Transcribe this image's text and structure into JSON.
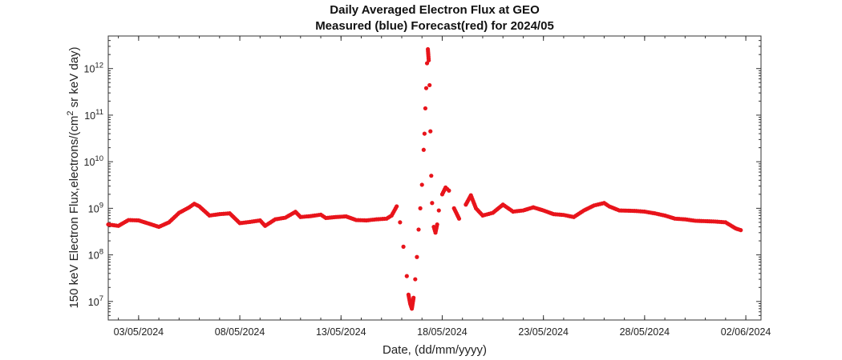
{
  "chart_data": {
    "type": "scatter",
    "title": "Daily Averaged Electron Flux at GEO",
    "subtitle": "Measured (blue) Forecast(red) for 2024/05",
    "xlabel": "Date, (dd/mm/yyyy)",
    "ylabel": "150 keV Electron Flux,electrons/(cm² sr keV day)",
    "ylabel_parts": {
      "before": "150 keV Electron Flux,electrons/(cm",
      "sup": "2",
      "after": " sr keV day)"
    },
    "x_scale": "date",
    "y_scale": "log",
    "xlim": [
      "2024-05-01 12:00",
      "2024-06-02 18:00"
    ],
    "ylim": [
      4000000.0,
      5000000000000.0
    ],
    "x_ticks": [
      "03/05/2024",
      "08/05/2024",
      "13/05/2024",
      "18/05/2024",
      "23/05/2024",
      "28/05/2024",
      "02/06/2024"
    ],
    "y_ticks": [
      {
        "base": "10",
        "exp": "7"
      },
      {
        "base": "10",
        "exp": "8"
      },
      {
        "base": "10",
        "exp": "9"
      },
      {
        "base": "10",
        "exp": "10"
      },
      {
        "base": "10",
        "exp": "11"
      },
      {
        "base": "10",
        "exp": "12"
      }
    ],
    "grid": false,
    "legend": "none",
    "series": [
      {
        "color": "#e8141b",
        "points": [
          [
            "2024-05-01 12:00",
            450000000.0
          ],
          [
            "2024-05-02 00:00",
            420000000.0
          ],
          [
            "2024-05-02 12:00",
            560000000.0
          ],
          [
            "2024-05-03 00:00",
            550000000.0
          ],
          [
            "2024-05-03 12:00",
            470000000.0
          ],
          [
            "2024-05-04 00:00",
            400000000.0
          ],
          [
            "2024-05-04 12:00",
            500000000.0
          ],
          [
            "2024-05-05 00:00",
            800000000.0
          ],
          [
            "2024-05-05 12:00",
            1050000000.0
          ],
          [
            "2024-05-05 18:00",
            1250000000.0
          ],
          [
            "2024-05-06 00:00",
            1100000000.0
          ],
          [
            "2024-05-06 12:00",
            700000000.0
          ],
          [
            "2024-05-07 00:00",
            750000000.0
          ],
          [
            "2024-05-07 12:00",
            780000000.0
          ],
          [
            "2024-05-08 00:00",
            480000000.0
          ],
          [
            "2024-05-08 12:00",
            510000000.0
          ],
          [
            "2024-05-09 00:00",
            550000000.0
          ],
          [
            "2024-05-09 06:00",
            420000000.0
          ],
          [
            "2024-05-09 18:00",
            580000000.0
          ],
          [
            "2024-05-10 06:00",
            630000000.0
          ],
          [
            "2024-05-10 18:00",
            840000000.0
          ],
          [
            "2024-05-11 00:00",
            650000000.0
          ],
          [
            "2024-05-11 12:00",
            680000000.0
          ],
          [
            "2024-05-12 00:00",
            730000000.0
          ],
          [
            "2024-05-12 06:00",
            620000000.0
          ],
          [
            "2024-05-12 18:00",
            650000000.0
          ],
          [
            "2024-05-13 06:00",
            670000000.0
          ],
          [
            "2024-05-13 18:00",
            560000000.0
          ],
          [
            "2024-05-14 06:00",
            550000000.0
          ],
          [
            "2024-05-14 18:00",
            580000000.0
          ],
          [
            "2024-05-15 06:00",
            600000000.0
          ],
          [
            "2024-05-15 12:00",
            700000000.0
          ],
          [
            "2024-05-15 18:00",
            1100000000.0
          ],
          [
            "2024-05-15 22:00",
            500000000.0
          ],
          [
            "2024-05-16 02:00",
            150000000.0
          ],
          [
            "2024-05-16 06:00",
            35000000.0
          ],
          [
            "2024-05-16 08:00",
            14000000.0
          ],
          [
            "2024-05-16 10:00",
            9000000.0
          ],
          [
            "2024-05-16 12:00",
            7000000.0
          ],
          [
            "2024-05-16 14:00",
            12000000.0
          ],
          [
            "2024-05-16 16:00",
            30000000.0
          ],
          [
            "2024-05-16 18:00",
            90000000.0
          ],
          [
            "2024-05-16 20:00",
            350000000.0
          ],
          [
            "2024-05-16 22:00",
            1000000000.0
          ],
          [
            "2024-05-17 00:00",
            3200000000.0
          ],
          [
            "2024-05-17 02:00",
            18000000000.0
          ],
          [
            "2024-05-17 03:00",
            40000000000.0
          ],
          [
            "2024-05-17 04:00",
            140000000000.0
          ],
          [
            "2024-05-17 05:00",
            380000000000.0
          ],
          [
            "2024-05-17 06:00",
            1300000000000.0
          ],
          [
            "2024-05-17 07:00",
            2600000000000.0
          ],
          [
            "2024-05-17 08:00",
            1500000000000.0
          ],
          [
            "2024-05-17 09:00",
            440000000000.0
          ],
          [
            "2024-05-17 10:00",
            45000000000.0
          ],
          [
            "2024-05-17 11:00",
            5000000000.0
          ],
          [
            "2024-05-17 12:00",
            1300000000.0
          ],
          [
            "2024-05-17 14:00",
            400000000.0
          ],
          [
            "2024-05-17 16:00",
            300000000.0
          ],
          [
            "2024-05-17 18:00",
            450000000.0
          ],
          [
            "2024-05-17 20:00",
            900000000.0
          ],
          [
            "2024-05-18 00:00",
            2000000000.0
          ],
          [
            "2024-05-18 04:00",
            2800000000.0
          ],
          [
            "2024-05-18 08:00",
            2400000000.0
          ],
          [
            "2024-05-18 14:00",
            1000000000.0
          ],
          [
            "2024-05-18 20:00",
            600000000.0
          ],
          [
            "2024-05-19 04:00",
            1200000000.0
          ],
          [
            "2024-05-19 10:00",
            1900000000.0
          ],
          [
            "2024-05-19 16:00",
            1000000000.0
          ],
          [
            "2024-05-20 00:00",
            700000000.0
          ],
          [
            "2024-05-20 12:00",
            800000000.0
          ],
          [
            "2024-05-21 00:00",
            1200000000.0
          ],
          [
            "2024-05-21 12:00",
            850000000.0
          ],
          [
            "2024-05-22 00:00",
            900000000.0
          ],
          [
            "2024-05-22 12:00",
            1050000000.0
          ],
          [
            "2024-05-23 00:00",
            900000000.0
          ],
          [
            "2024-05-23 12:00",
            750000000.0
          ],
          [
            "2024-05-24 00:00",
            720000000.0
          ],
          [
            "2024-05-24 12:00",
            650000000.0
          ],
          [
            "2024-05-25 00:00",
            900000000.0
          ],
          [
            "2024-05-25 12:00",
            1150000000.0
          ],
          [
            "2024-05-26 00:00",
            1300000000.0
          ],
          [
            "2024-05-26 06:00",
            1100000000.0
          ],
          [
            "2024-05-26 18:00",
            900000000.0
          ],
          [
            "2024-05-27 12:00",
            880000000.0
          ],
          [
            "2024-05-28 00:00",
            850000000.0
          ],
          [
            "2024-05-28 12:00",
            780000000.0
          ],
          [
            "2024-05-29 00:00",
            700000000.0
          ],
          [
            "2024-05-29 12:00",
            600000000.0
          ],
          [
            "2024-05-30 00:00",
            580000000.0
          ],
          [
            "2024-05-30 12:00",
            540000000.0
          ],
          [
            "2024-05-31 00:00",
            530000000.0
          ],
          [
            "2024-05-31 12:00",
            520000000.0
          ],
          [
            "2024-06-01 00:00",
            500000000.0
          ],
          [
            "2024-06-01 06:00",
            430000000.0
          ],
          [
            "2024-06-01 12:00",
            370000000.0
          ],
          [
            "2024-06-01 18:00",
            340000000.0
          ]
        ]
      }
    ]
  }
}
